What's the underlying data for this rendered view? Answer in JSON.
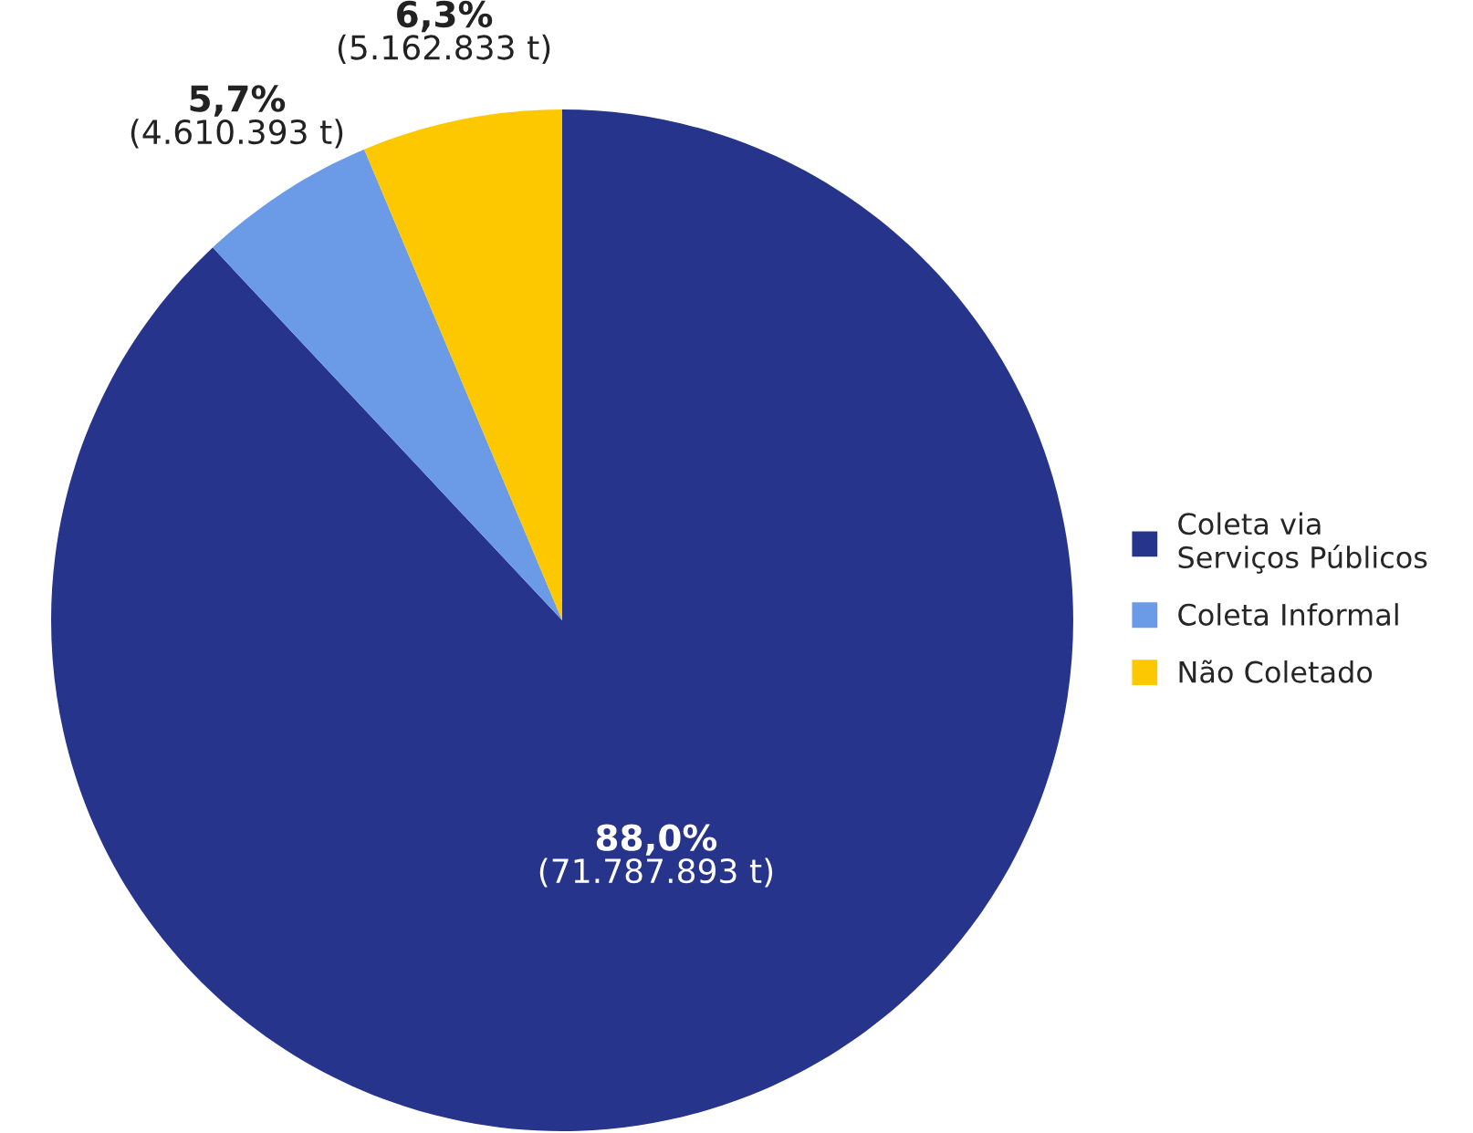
{
  "chart_data": {
    "type": "pie",
    "categories": [
      "Coleta via\nServiços Públicos",
      "Coleta Informal",
      "Não Coletado"
    ],
    "values": [
      71787893,
      4610393,
      5162833
    ],
    "colors": [
      "#27348b",
      "#6b9be6",
      "#fdc800"
    ],
    "value_labels": [
      "88,0%\n(71.787.893 t)",
      "5,7%\n(4.610.393 t)",
      "6,3%\n(5.162.833 t)"
    ],
    "legend": "right"
  }
}
